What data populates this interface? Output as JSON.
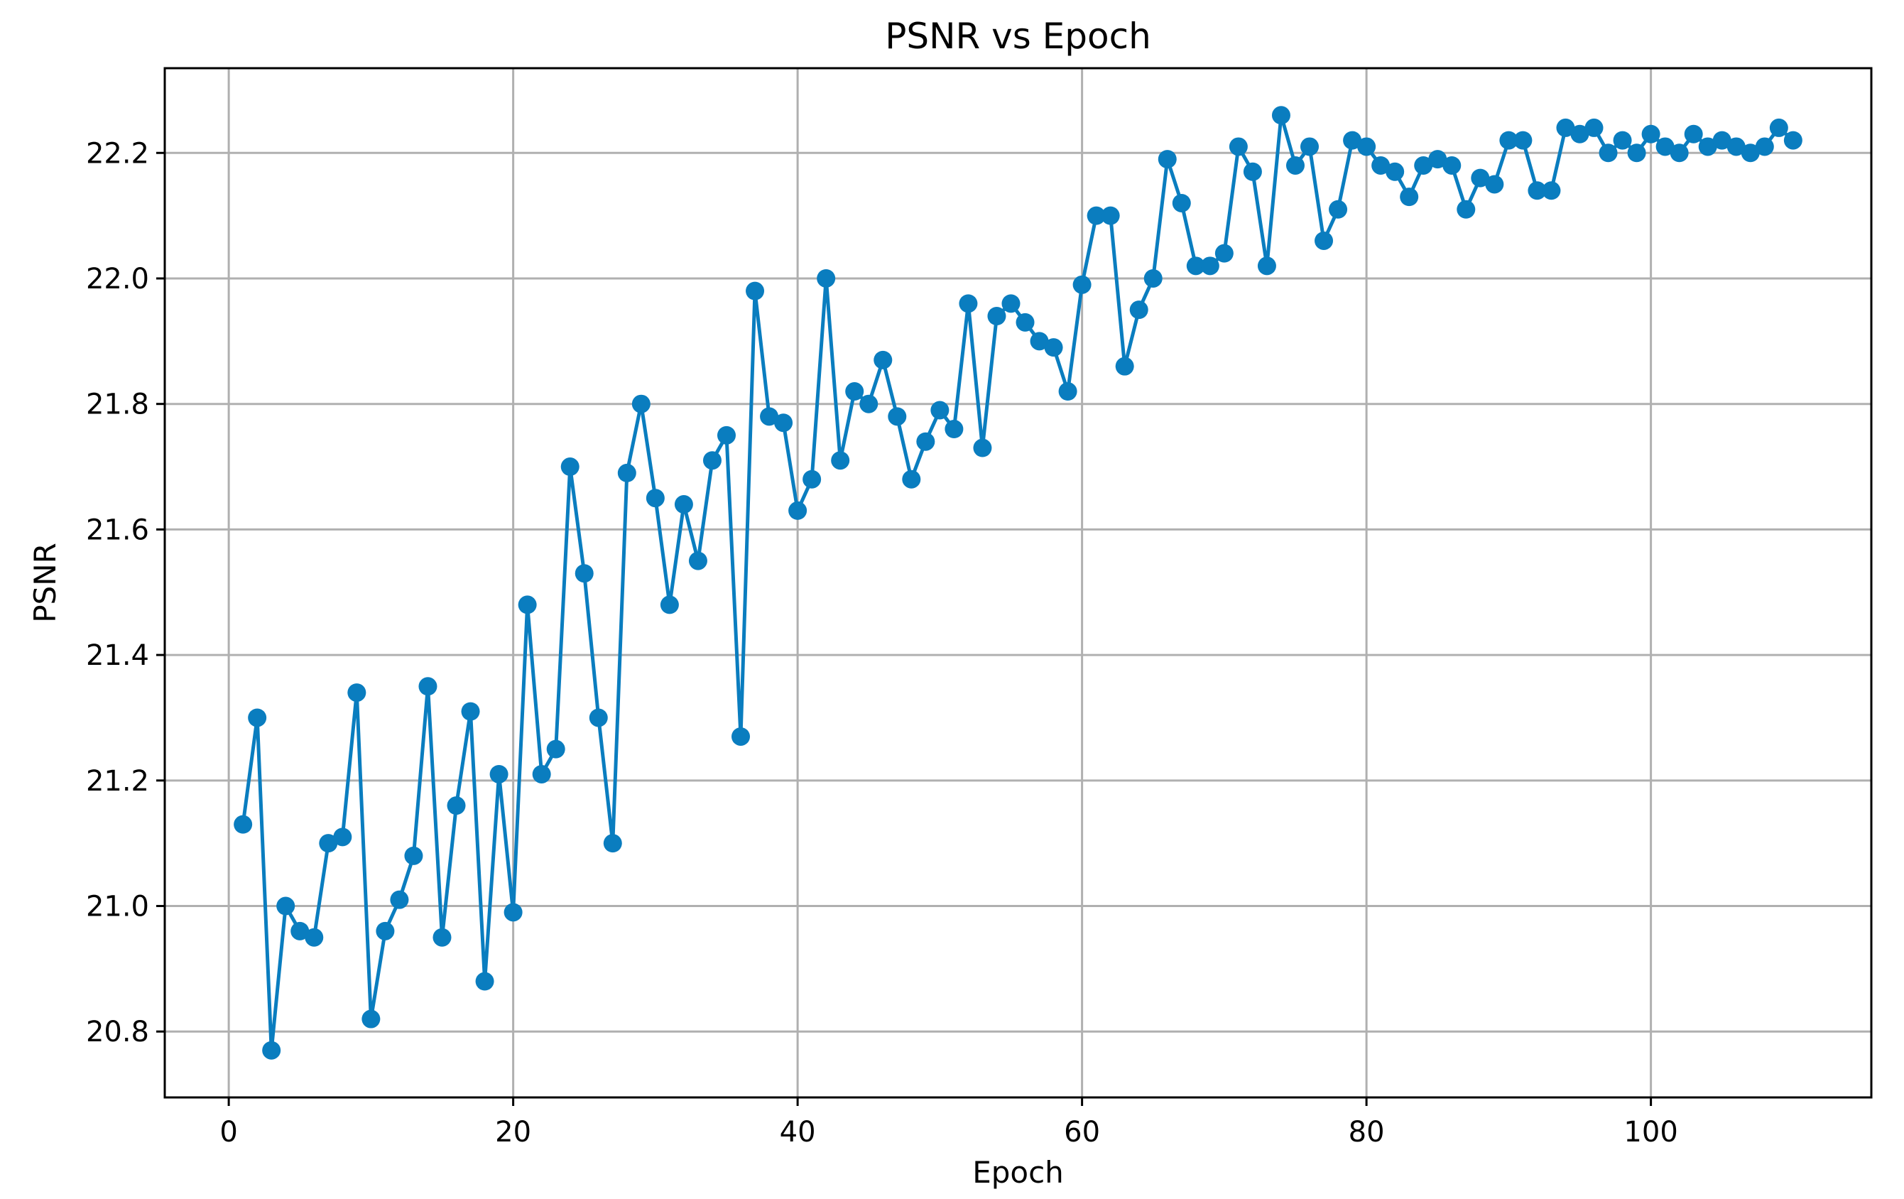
{
  "chart_data": {
    "type": "line",
    "title": "PSNR vs Epoch",
    "xlabel": "Epoch",
    "ylabel": "PSNR",
    "xlim": [
      -4.5,
      115.5
    ],
    "ylim": [
      20.695,
      22.335
    ],
    "xticks": [
      0,
      20,
      40,
      60,
      80,
      100
    ],
    "xtick_labels": [
      "0",
      "20",
      "40",
      "60",
      "80",
      "100"
    ],
    "yticks": [
      20.8,
      21.0,
      21.2,
      21.4,
      21.6,
      21.8,
      22.0,
      22.2
    ],
    "ytick_labels": [
      "20.8",
      "21.0",
      "21.2",
      "21.4",
      "21.6",
      "21.8",
      "22.0",
      "22.2"
    ],
    "grid": true,
    "line_color": "#0a7dbf",
    "series": [
      {
        "x": [
          1,
          2,
          3,
          4,
          5,
          6,
          7,
          8,
          9,
          10,
          11,
          12,
          13,
          14,
          15,
          16,
          17,
          18,
          19,
          20,
          21,
          22,
          23,
          24,
          25,
          26,
          27,
          28,
          29,
          30,
          31,
          32,
          33,
          34,
          35,
          36,
          37,
          38,
          39,
          40,
          41,
          42,
          43,
          44,
          45,
          46,
          47,
          48,
          49,
          50,
          51,
          52,
          53,
          54,
          55,
          56,
          57,
          58,
          59,
          60,
          61,
          62,
          63,
          64,
          65,
          66,
          67,
          68,
          69,
          70,
          71,
          72,
          73,
          74,
          75,
          76,
          77,
          78,
          79,
          80,
          81,
          82,
          83,
          84,
          85,
          86,
          87,
          88,
          89,
          90,
          91,
          92,
          93,
          94,
          95,
          96,
          97,
          98,
          99,
          100,
          101,
          102,
          103,
          104,
          105,
          106,
          107,
          108,
          109,
          110
        ],
        "values": [
          21.13,
          21.3,
          20.77,
          21.0,
          20.96,
          20.95,
          21.1,
          21.11,
          21.34,
          20.82,
          20.96,
          21.01,
          21.08,
          21.35,
          20.95,
          21.16,
          21.31,
          20.88,
          21.21,
          20.99,
          21.48,
          21.21,
          21.25,
          21.7,
          21.53,
          21.3,
          21.1,
          21.69,
          21.8,
          21.65,
          21.48,
          21.64,
          21.55,
          21.71,
          21.75,
          21.27,
          21.98,
          21.78,
          21.77,
          21.63,
          21.68,
          22.0,
          21.71,
          21.82,
          21.8,
          21.87,
          21.78,
          21.68,
          21.74,
          21.79,
          21.76,
          21.96,
          21.73,
          21.94,
          21.96,
          21.93,
          21.9,
          21.89,
          21.82,
          21.99,
          22.1,
          22.1,
          21.86,
          21.95,
          22.0,
          22.19,
          22.12,
          22.02,
          22.02,
          22.04,
          22.21,
          22.17,
          22.02,
          22.26,
          22.18,
          22.21,
          22.06,
          22.11,
          22.22,
          22.21,
          22.18,
          22.17,
          22.13,
          22.18,
          22.19,
          22.18,
          22.11,
          22.16,
          22.15,
          22.22,
          22.22,
          22.14,
          22.14,
          22.24,
          22.23,
          22.24,
          22.2,
          22.22,
          22.2,
          22.23,
          22.21,
          22.2,
          22.23,
          22.21,
          22.22,
          22.21,
          22.2,
          22.21,
          22.24,
          22.22
        ]
      }
    ]
  }
}
